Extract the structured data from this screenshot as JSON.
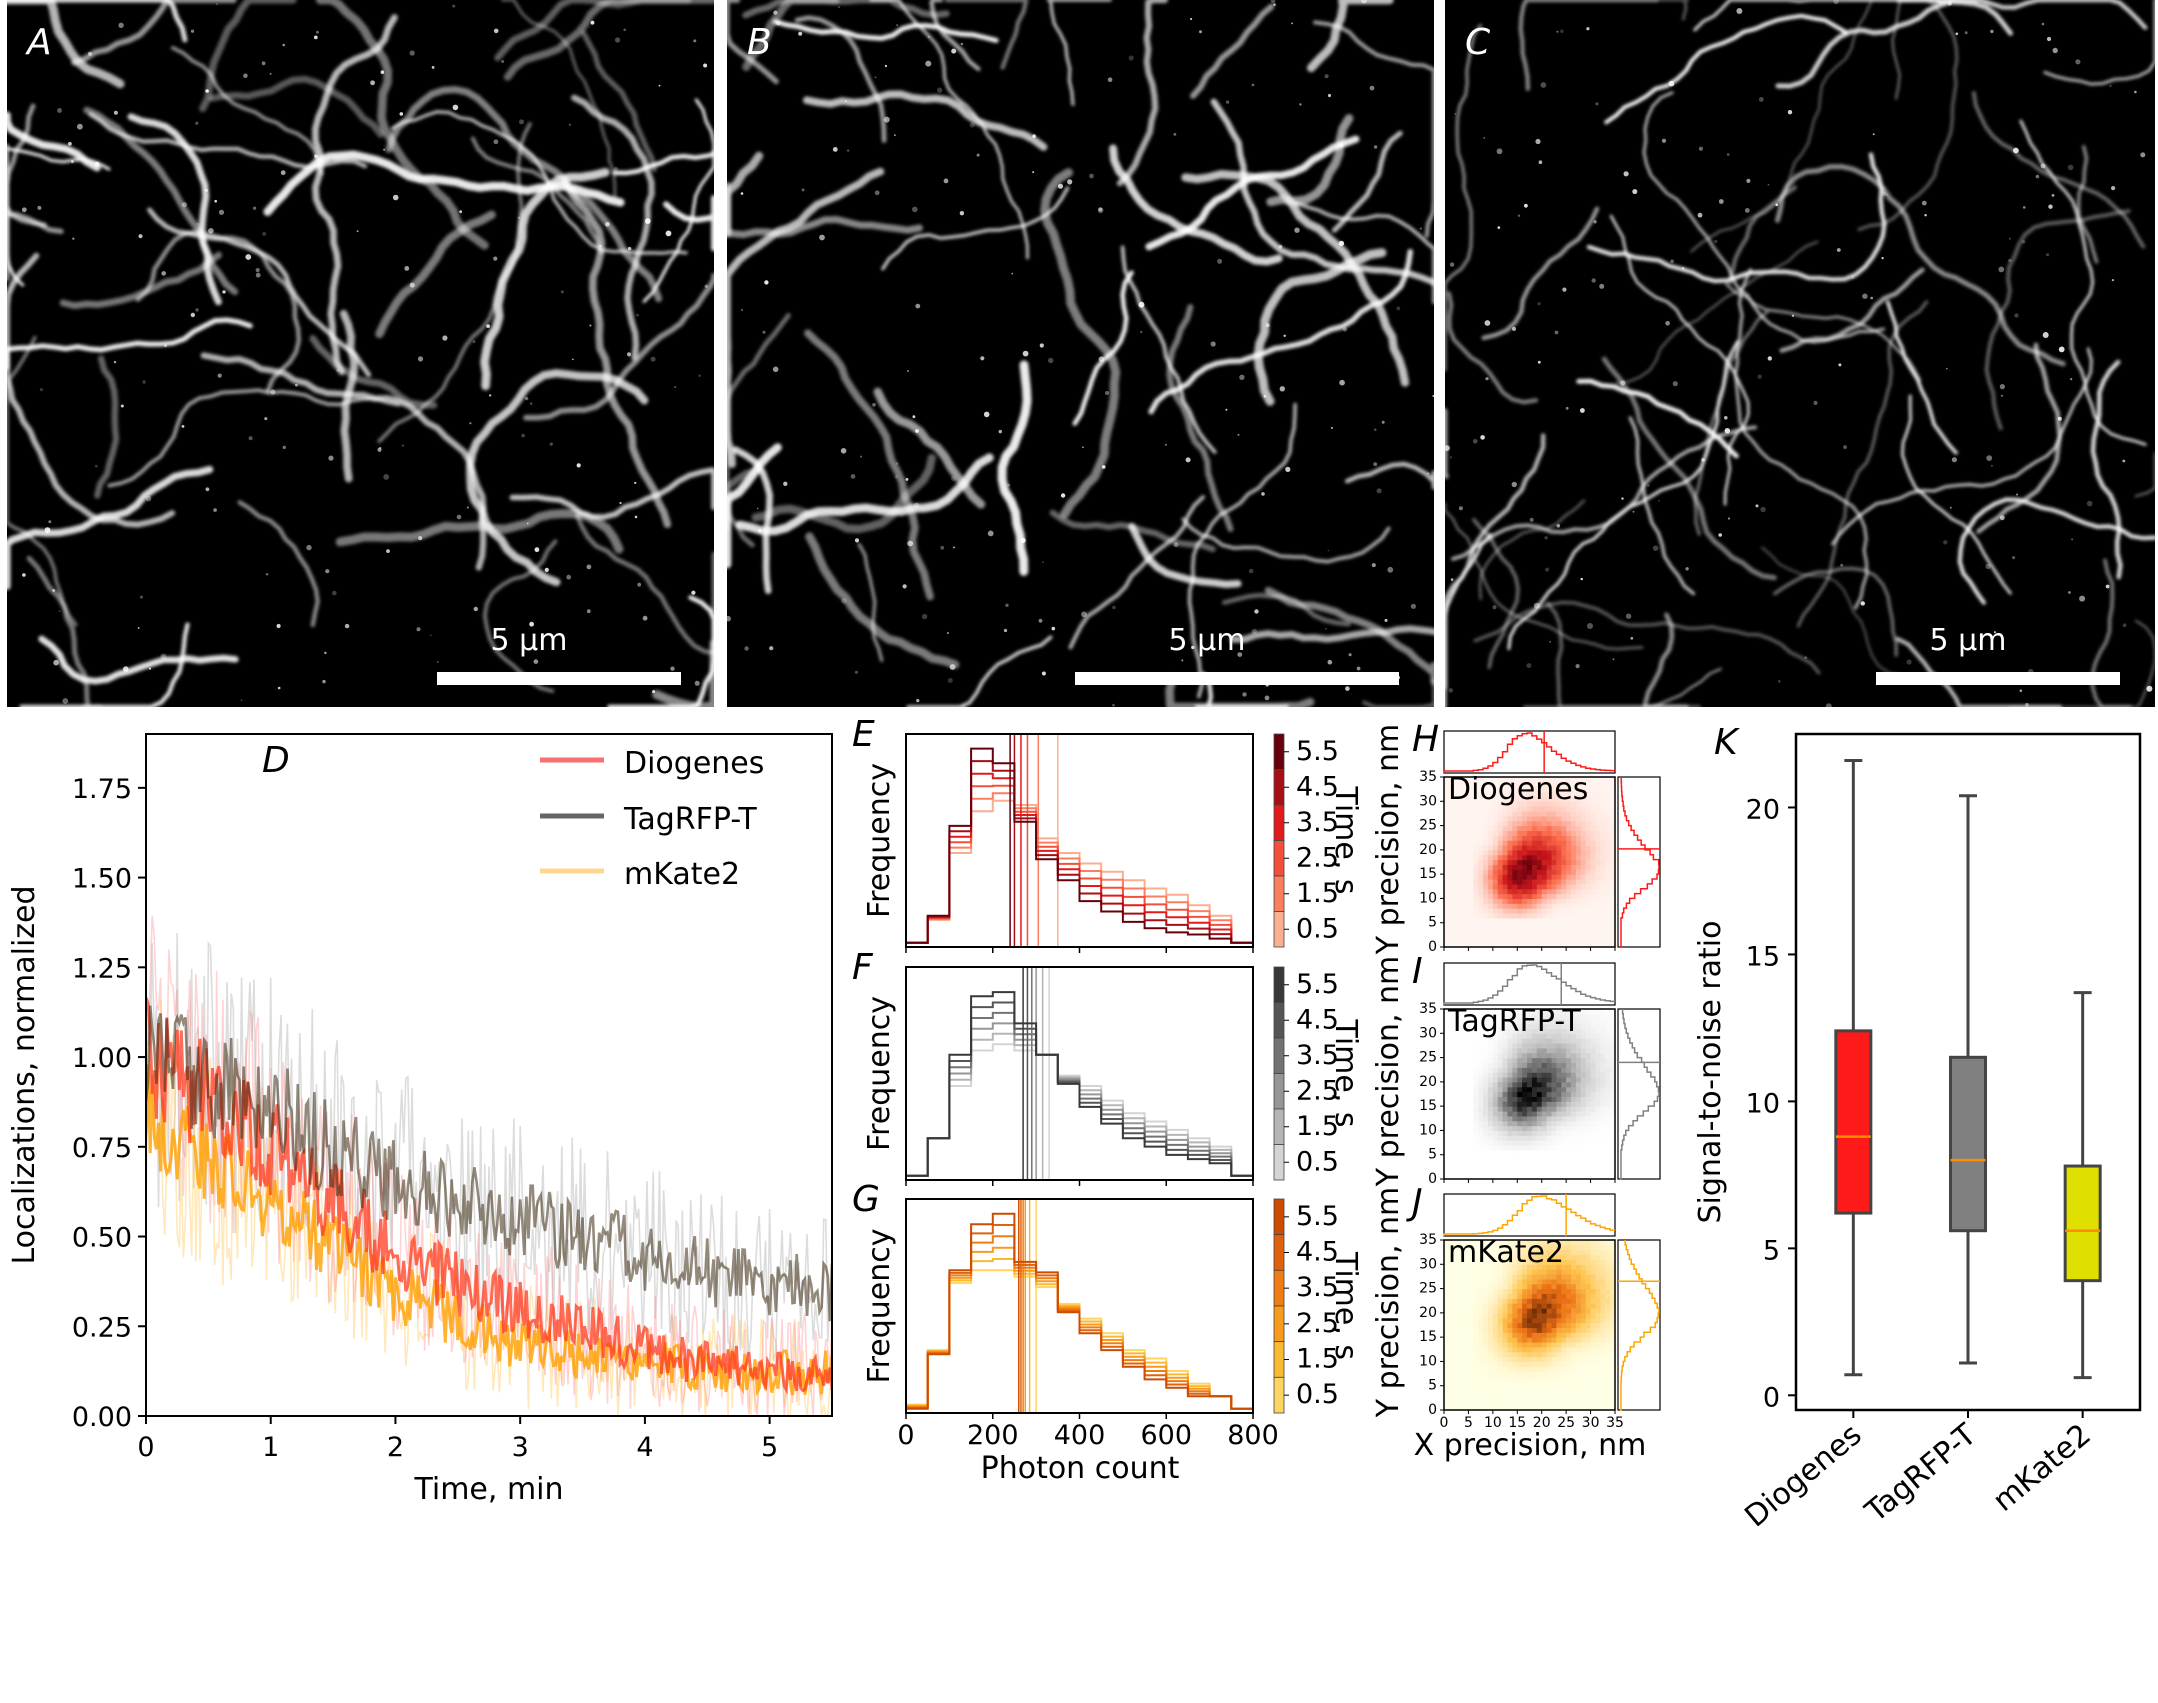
{
  "micro_panels": [
    {
      "letter": "A",
      "scalebar": "5 µm"
    },
    {
      "letter": "B",
      "scalebar": "5 µm"
    },
    {
      "letter": "C",
      "scalebar": "5 µm"
    }
  ],
  "colors": {
    "diogenes": "#ff1a1a",
    "tagrfp": "#808080",
    "mkate2": "#e0e000",
    "median": "#ff8c00"
  },
  "chart_data": [
    {
      "id": "D",
      "type": "line",
      "letter": "D",
      "xlabel": "Time, min",
      "ylabel": "Localizations, normalized",
      "xlim": [
        0,
        5.5
      ],
      "ylim": [
        0,
        1.9
      ],
      "xticks": [
        0,
        1,
        2,
        3,
        4,
        5
      ],
      "yticks": [
        "0.00",
        "0.25",
        "0.50",
        "0.75",
        "1.00",
        "1.25",
        "1.50",
        "1.75"
      ],
      "legend_position": "top-right",
      "x": [
        0,
        0.5,
        1,
        1.5,
        2,
        2.5,
        3,
        3.5,
        4,
        4.5,
        5,
        5.5
      ],
      "series": [
        {
          "name": "mKate2",
          "color": "#ffb000",
          "values": [
            0.85,
            0.72,
            0.6,
            0.46,
            0.35,
            0.27,
            0.2,
            0.17,
            0.15,
            0.13,
            0.12,
            0.12
          ]
        },
        {
          "name": "TagRFP-T",
          "color": "#555555",
          "values": [
            1.0,
            0.93,
            0.85,
            0.75,
            0.65,
            0.6,
            0.55,
            0.5,
            0.45,
            0.4,
            0.37,
            0.35
          ]
        },
        {
          "name": "Diogenes",
          "color": "#ff3b1f",
          "values": [
            1.0,
            0.88,
            0.75,
            0.6,
            0.45,
            0.37,
            0.3,
            0.24,
            0.18,
            0.15,
            0.13,
            0.13
          ]
        }
      ]
    },
    {
      "id": "E",
      "type": "step-histogram",
      "letter": "E",
      "protein": "Diogenes",
      "ylabel": "Frequency",
      "xlim": [
        0,
        800
      ],
      "bin_width": 50,
      "colorbar": {
        "label": "Time, s",
        "ticks": [
          "5.5",
          "4.5",
          "3.5",
          "2.5",
          "1.5",
          "0.5"
        ],
        "colors": [
          "#67000d",
          "#a50f15",
          "#e31a1c",
          "#f2503a",
          "#fb7e5f",
          "#fcae91"
        ]
      },
      "times": [
        0.5,
        1.5,
        2.5,
        3.5,
        4.5,
        5.5
      ],
      "first": [
        0.02,
        0.13,
        0.45,
        0.65,
        0.7,
        0.68,
        0.52,
        0.45,
        0.4,
        0.36,
        0.32,
        0.28,
        0.25,
        0.2,
        0.15,
        0.02
      ],
      "last": [
        0.02,
        0.15,
        0.58,
        0.95,
        0.88,
        0.6,
        0.42,
        0.32,
        0.22,
        0.17,
        0.12,
        0.09,
        0.07,
        0.06,
        0.04,
        0.02
      ],
      "medians": [
        350,
        305,
        280,
        265,
        250,
        240
      ]
    },
    {
      "id": "F",
      "type": "step-histogram",
      "letter": "F",
      "protein": "TagRFP-T",
      "ylabel": "Frequency",
      "xlim": [
        0,
        800
      ],
      "bin_width": 50,
      "colorbar": {
        "label": "Time, s",
        "ticks": [
          "5.5",
          "4.5",
          "3.5",
          "2.5",
          "1.5",
          "0.5"
        ],
        "colors": [
          "#383838",
          "#555555",
          "#737373",
          "#969696",
          "#b5b5b5",
          "#d4d4d4"
        ]
      },
      "times": [
        0.5,
        1.5,
        2.5,
        3.5,
        4.5,
        5.5
      ],
      "first": [
        0.02,
        0.2,
        0.45,
        0.62,
        0.65,
        0.62,
        0.6,
        0.5,
        0.45,
        0.38,
        0.32,
        0.28,
        0.24,
        0.2,
        0.16,
        0.02
      ],
      "last": [
        0.02,
        0.2,
        0.6,
        0.88,
        0.9,
        0.75,
        0.6,
        0.46,
        0.35,
        0.27,
        0.2,
        0.16,
        0.12,
        0.1,
        0.08,
        0.02
      ],
      "medians": [
        330,
        315,
        300,
        290,
        280,
        270
      ]
    },
    {
      "id": "G",
      "type": "step-histogram",
      "letter": "G",
      "protein": "mKate2",
      "ylabel": "Frequency",
      "xlim": [
        0,
        800
      ],
      "bin_width": 50,
      "colorbar": {
        "label": "Time, s",
        "ticks": [
          "5.5",
          "4.5",
          "3.5",
          "2.5",
          "1.5",
          "0.5"
        ],
        "colors": [
          "#cc4c02",
          "#e0620a",
          "#f07d12",
          "#f89a1c",
          "#fbb931",
          "#fdd563"
        ]
      },
      "times": [
        0.5,
        1.5,
        2.5,
        3.5,
        4.5,
        5.5
      ],
      "first": [
        0.04,
        0.3,
        0.62,
        0.68,
        0.68,
        0.65,
        0.6,
        0.52,
        0.45,
        0.38,
        0.3,
        0.26,
        0.2,
        0.14,
        0.08,
        0.02
      ],
      "last": [
        0.02,
        0.28,
        0.68,
        0.9,
        0.95,
        0.72,
        0.67,
        0.48,
        0.38,
        0.3,
        0.22,
        0.16,
        0.12,
        0.08,
        0.08,
        0.02
      ],
      "medians": [
        300,
        285,
        275,
        270,
        265,
        260
      ]
    },
    {
      "id": "H",
      "type": "heatmap",
      "letter": "H",
      "protein": "Diogenes",
      "cmap": [
        "#fff5f0",
        "#fb6a4a",
        "#cb181d",
        "#67000d"
      ],
      "xlabel": "X precision, nm",
      "ylabel": "Y precision, nm",
      "xlim": [
        0,
        35
      ],
      "ylim": [
        0,
        35
      ],
      "ticks": [
        0,
        5,
        10,
        15,
        20,
        25,
        30,
        35
      ],
      "peak": [
        16,
        15
      ],
      "spread": [
        6.5,
        3.2
      ],
      "mean_x": 20.5,
      "mean_y": 20.2,
      "line_color": "#ff1a1a"
    },
    {
      "id": "I",
      "type": "heatmap",
      "letter": "I",
      "protein": "TagRFP-T",
      "cmap": [
        "#ffffff",
        "#bdbdbd",
        "#636363",
        "#000000"
      ],
      "xlabel": "X precision, nm",
      "ylabel": "Y precision, nm",
      "xlim": [
        0,
        35
      ],
      "ylim": [
        0,
        35
      ],
      "ticks": [
        0,
        5,
        10,
        15,
        20,
        25,
        30,
        35
      ],
      "peak": [
        17,
        17
      ],
      "spread": [
        7.5,
        3.6
      ],
      "mean_x": 24,
      "mean_y": 24,
      "line_color": "#808080"
    },
    {
      "id": "J",
      "type": "heatmap",
      "letter": "J",
      "protein": "mKate2",
      "cmap": [
        "#ffffe5",
        "#fec44f",
        "#ec7014",
        "#662506"
      ],
      "xlabel": "X precision, nm",
      "ylabel": "Y precision, nm",
      "xlim": [
        0,
        35
      ],
      "ylim": [
        0,
        35
      ],
      "ticks": [
        0,
        5,
        10,
        15,
        20,
        25,
        30,
        35
      ],
      "peak": [
        19,
        19
      ],
      "spread": [
        8,
        3.8
      ],
      "mean_x": 25,
      "mean_y": 26.5,
      "line_color": "#ffa500"
    },
    {
      "id": "K",
      "type": "box",
      "letter": "K",
      "ylabel": "Signal-to-noise ratio",
      "ylim": [
        -0.5,
        22.5
      ],
      "yticks": [
        0,
        5,
        10,
        15,
        20
      ],
      "categories": [
        "Diogenes",
        "TagRFP-T",
        "mKate2"
      ],
      "boxes": [
        {
          "name": "Diogenes",
          "whislo": 0.7,
          "q1": 6.2,
          "med": 8.8,
          "q3": 12.4,
          "whishi": 21.6,
          "color": "#ff1a1a"
        },
        {
          "name": "TagRFP-T",
          "whislo": 1.1,
          "q1": 5.6,
          "med": 8.0,
          "q3": 11.5,
          "whishi": 20.4,
          "color": "#808080"
        },
        {
          "name": "mKate2",
          "whislo": 0.6,
          "q1": 3.9,
          "med": 5.6,
          "q3": 7.8,
          "whishi": 13.7,
          "color": "#e0e000"
        }
      ]
    }
  ]
}
